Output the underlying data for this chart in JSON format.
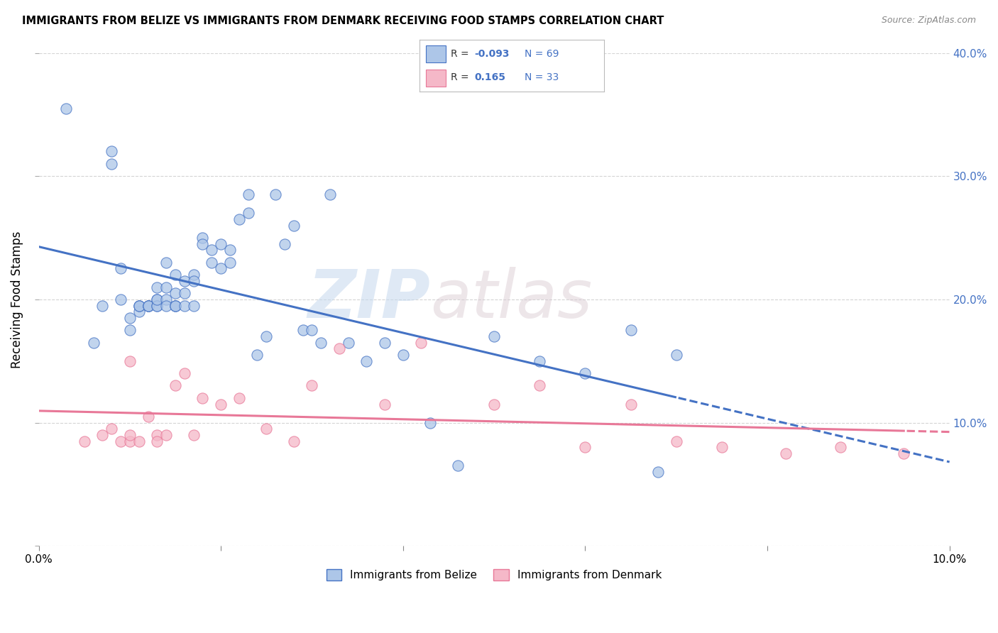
{
  "title": "IMMIGRANTS FROM BELIZE VS IMMIGRANTS FROM DENMARK RECEIVING FOOD STAMPS CORRELATION CHART",
  "source": "Source: ZipAtlas.com",
  "ylabel": "Receiving Food Stamps",
  "watermark_zip": "ZIP",
  "watermark_atlas": "atlas",
  "legend_belize": "Immigrants from Belize",
  "legend_denmark": "Immigrants from Denmark",
  "R_belize": -0.093,
  "N_belize": 69,
  "R_denmark": 0.165,
  "N_denmark": 33,
  "color_belize": "#adc6e8",
  "color_denmark": "#f5b8c8",
  "line_color_belize": "#4472c4",
  "line_color_denmark": "#e87898",
  "belize_x": [
    0.003,
    0.006,
    0.007,
    0.008,
    0.008,
    0.009,
    0.009,
    0.01,
    0.01,
    0.011,
    0.011,
    0.011,
    0.011,
    0.012,
    0.012,
    0.012,
    0.012,
    0.013,
    0.013,
    0.013,
    0.013,
    0.013,
    0.014,
    0.014,
    0.014,
    0.014,
    0.015,
    0.015,
    0.015,
    0.015,
    0.015,
    0.016,
    0.016,
    0.016,
    0.017,
    0.017,
    0.017,
    0.018,
    0.018,
    0.019,
    0.019,
    0.02,
    0.02,
    0.021,
    0.021,
    0.022,
    0.023,
    0.023,
    0.024,
    0.025,
    0.026,
    0.027,
    0.028,
    0.029,
    0.03,
    0.031,
    0.032,
    0.034,
    0.036,
    0.038,
    0.04,
    0.043,
    0.046,
    0.05,
    0.055,
    0.06,
    0.065,
    0.068,
    0.07
  ],
  "belize_y": [
    0.355,
    0.165,
    0.195,
    0.32,
    0.31,
    0.2,
    0.225,
    0.175,
    0.185,
    0.195,
    0.19,
    0.195,
    0.195,
    0.195,
    0.195,
    0.195,
    0.195,
    0.195,
    0.21,
    0.2,
    0.195,
    0.2,
    0.23,
    0.2,
    0.21,
    0.195,
    0.195,
    0.22,
    0.195,
    0.205,
    0.195,
    0.205,
    0.195,
    0.215,
    0.22,
    0.215,
    0.195,
    0.25,
    0.245,
    0.24,
    0.23,
    0.245,
    0.225,
    0.24,
    0.23,
    0.265,
    0.27,
    0.285,
    0.155,
    0.17,
    0.285,
    0.245,
    0.26,
    0.175,
    0.175,
    0.165,
    0.285,
    0.165,
    0.15,
    0.165,
    0.155,
    0.1,
    0.065,
    0.17,
    0.15,
    0.14,
    0.175,
    0.06,
    0.155
  ],
  "denmark_x": [
    0.005,
    0.007,
    0.008,
    0.009,
    0.01,
    0.01,
    0.01,
    0.011,
    0.012,
    0.013,
    0.013,
    0.014,
    0.015,
    0.016,
    0.017,
    0.018,
    0.02,
    0.022,
    0.025,
    0.028,
    0.03,
    0.033,
    0.038,
    0.042,
    0.05,
    0.055,
    0.06,
    0.065,
    0.07,
    0.075,
    0.082,
    0.088,
    0.095
  ],
  "denmark_y": [
    0.085,
    0.09,
    0.095,
    0.085,
    0.085,
    0.15,
    0.09,
    0.085,
    0.105,
    0.09,
    0.085,
    0.09,
    0.13,
    0.14,
    0.09,
    0.12,
    0.115,
    0.12,
    0.095,
    0.085,
    0.13,
    0.16,
    0.115,
    0.165,
    0.115,
    0.13,
    0.08,
    0.115,
    0.085,
    0.08,
    0.075,
    0.08,
    0.075
  ],
  "xlim": [
    0.0,
    0.1
  ],
  "ylim": [
    0.0,
    0.4
  ],
  "background_color": "#ffffff",
  "grid_color": "#d0d0d0"
}
